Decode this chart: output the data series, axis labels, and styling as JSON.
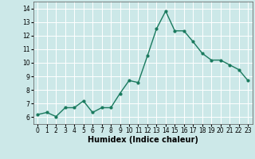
{
  "x": [
    0,
    1,
    2,
    3,
    4,
    5,
    6,
    7,
    8,
    9,
    10,
    11,
    12,
    13,
    14,
    15,
    16,
    17,
    18,
    19,
    20,
    21,
    22,
    23
  ],
  "y": [
    6.2,
    6.35,
    6.05,
    6.7,
    6.7,
    7.2,
    6.35,
    6.7,
    6.7,
    7.75,
    8.7,
    8.55,
    10.5,
    12.5,
    13.8,
    12.35,
    12.35,
    11.55,
    10.7,
    10.2,
    10.2,
    9.85,
    9.5,
    8.7
  ],
  "line_color": "#1a7a5e",
  "marker": "o",
  "marker_size": 2.0,
  "linewidth": 1.0,
  "xlabel": "Humidex (Indice chaleur)",
  "xlim": [
    -0.5,
    23.5
  ],
  "ylim": [
    5.5,
    14.5
  ],
  "yticks": [
    6,
    7,
    8,
    9,
    10,
    11,
    12,
    13,
    14
  ],
  "xticks": [
    0,
    1,
    2,
    3,
    4,
    5,
    6,
    7,
    8,
    9,
    10,
    11,
    12,
    13,
    14,
    15,
    16,
    17,
    18,
    19,
    20,
    21,
    22,
    23
  ],
  "background_color": "#cce8e8",
  "grid_color": "#aed4d4",
  "tick_fontsize": 5.5,
  "xlabel_fontsize": 7.0
}
